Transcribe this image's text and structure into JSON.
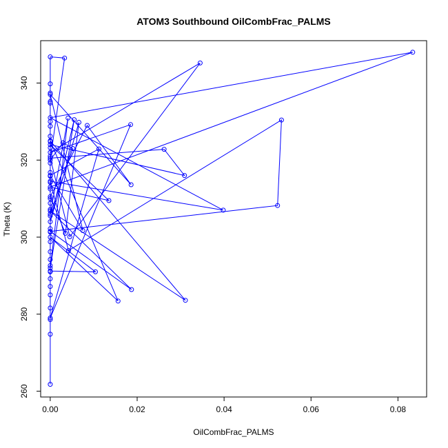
{
  "chart_data": {
    "type": "line",
    "title": "ATOM3 Southbound OilCombFrac_PALMS",
    "xlabel": "OilCombFrac_PALMS",
    "ylabel": "Theta (K)",
    "xlim": [
      -0.0022,
      0.0866
    ],
    "ylim": [
      258.5,
      351
    ],
    "x_ticks": [
      0.0,
      0.02,
      0.04,
      0.06,
      0.08
    ],
    "x_tick_labels": [
      "0.00",
      "0.02",
      "0.04",
      "0.06",
      "0.08"
    ],
    "y_ticks": [
      260,
      280,
      300,
      320,
      340
    ],
    "y_tick_labels": [
      "260",
      "280",
      "300",
      "320",
      "340"
    ],
    "grid": false,
    "series_color": "#0000ff",
    "series": [
      {
        "markers": "open-circle",
        "points": [
          [
            0.0,
            261.8
          ],
          [
            0.0,
            274.8
          ],
          [
            0.0,
            278.6
          ],
          [
            0.0,
            281.6
          ],
          [
            0.0,
            285.0
          ],
          [
            0.0,
            287.2
          ],
          [
            0.0,
            289.2
          ],
          [
            0.0,
            291.0
          ],
          [
            0.0,
            292.6
          ],
          [
            0.0,
            294.2
          ],
          [
            0.0,
            296.2
          ],
          [
            0.0,
            298.8
          ],
          [
            0.0,
            301.3
          ],
          [
            0.0,
            302.2
          ],
          [
            0.0,
            305.5
          ],
          [
            0.0,
            307.2
          ],
          [
            0.0,
            308.8
          ],
          [
            0.0,
            310.0
          ],
          [
            0.0,
            312.5
          ],
          [
            0.0,
            314.2
          ],
          [
            0.0,
            315.8
          ],
          [
            0.0,
            316.8
          ],
          [
            0.0,
            319.2
          ],
          [
            0.0,
            321.0
          ],
          [
            0.0,
            323.2
          ],
          [
            0.0,
            324.8
          ],
          [
            0.0,
            326.2
          ],
          [
            0.0,
            328.8
          ],
          [
            0.0,
            330.0
          ],
          [
            0.0,
            334.8
          ],
          [
            0.0,
            335.2
          ],
          [
            0.0,
            337.4
          ],
          [
            0.0,
            339.8
          ],
          [
            0.0,
            346.8
          ],
          [
            0.0033,
            346.5
          ],
          [
            0.0,
            320.0
          ],
          [
            0.0029,
            324.5
          ],
          [
            0.0052,
            323.0
          ],
          [
            0.0,
            306.0
          ],
          [
            0.0041,
            330.9
          ],
          [
            0.0,
            292.0
          ],
          [
            0.0055,
            330.5
          ],
          [
            0.0,
            304.0
          ],
          [
            0.0066,
            329.8
          ],
          [
            0.0035,
            301.0
          ],
          [
            0.0,
            310.5
          ],
          [
            0.0085,
            329.0
          ],
          [
            0.0186,
            313.6
          ],
          [
            0.0,
            337.0
          ],
          [
            0.0075,
            301.7
          ],
          [
            0.0,
            316.0
          ],
          [
            0.0112,
            322.9
          ],
          [
            0.0,
            279.0
          ],
          [
            0.0185,
            329.2
          ],
          [
            0.0,
            322.0
          ],
          [
            0.0345,
            345.2
          ],
          [
            0.0045,
            300.1
          ],
          [
            0.0,
            320.5
          ],
          [
            0.0262,
            322.8
          ],
          [
            0.0309,
            316.0
          ],
          [
            0.0,
            324.0
          ],
          [
            0.0135,
            309.5
          ],
          [
            0.0,
            313.0
          ],
          [
            0.0834,
            348.0
          ],
          [
            0.0,
            331.0
          ],
          [
            0.0398,
            307.0
          ],
          [
            0.0,
            314.5
          ],
          [
            0.0042,
            296.5
          ],
          [
            0.0532,
            330.4
          ],
          [
            0.0523,
            308.2
          ],
          [
            0.0,
            301.5
          ],
          [
            0.0187,
            286.4
          ],
          [
            0.0,
            306.8
          ],
          [
            0.0311,
            283.6
          ],
          [
            0.0,
            325.0
          ],
          [
            0.0156,
            283.4
          ],
          [
            0.0,
            300.0
          ],
          [
            0.0104,
            291.0
          ],
          [
            0.0,
            291.2
          ]
        ]
      }
    ]
  }
}
